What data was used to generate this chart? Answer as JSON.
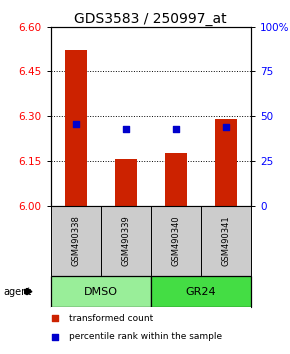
{
  "title": "GDS3583 / 250997_at",
  "samples": [
    "GSM490338",
    "GSM490339",
    "GSM490340",
    "GSM490341"
  ],
  "bar_values": [
    6.52,
    6.155,
    6.175,
    6.29
  ],
  "bar_baseline": 6.0,
  "bar_color": "#cc2200",
  "percentile_values": [
    45.5,
    42.5,
    43.0,
    44.0
  ],
  "percentile_color": "#0000cc",
  "left_ylim": [
    6.0,
    6.6
  ],
  "left_yticks": [
    6.0,
    6.15,
    6.3,
    6.45,
    6.6
  ],
  "right_yticks": [
    0,
    25,
    50,
    75,
    100
  ],
  "right_ylim": [
    0,
    100
  ],
  "grid_values": [
    6.15,
    6.3,
    6.45
  ],
  "groups": [
    {
      "label": "DMSO",
      "indices": [
        0,
        1
      ],
      "color": "#99ee99"
    },
    {
      "label": "GR24",
      "indices": [
        2,
        3
      ],
      "color": "#44dd44"
    }
  ],
  "agent_label": "agent",
  "legend_bar_label": "transformed count",
  "legend_pct_label": "percentile rank within the sample",
  "sample_box_color": "#cccccc",
  "title_fontsize": 10,
  "tick_fontsize": 7.5
}
